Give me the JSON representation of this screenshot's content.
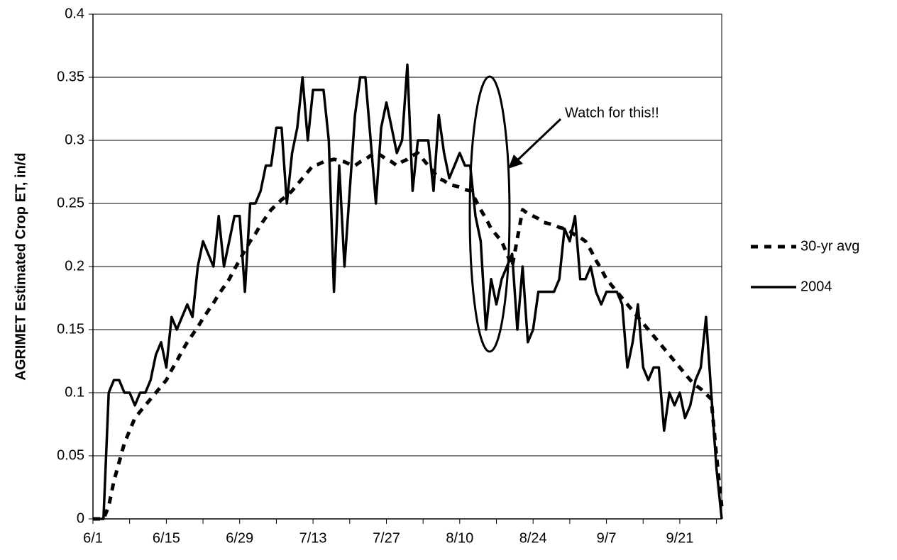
{
  "chart_data": {
    "type": "line",
    "y_label": "AGRIMET Estimated Crop ET, in/d",
    "annotation": "Watch for this!!",
    "categories": [
      "6/1",
      null,
      null,
      null,
      null,
      null,
      null,
      null,
      null,
      null,
      null,
      null,
      null,
      null,
      "6/15",
      null,
      null,
      null,
      null,
      null,
      null,
      null,
      null,
      null,
      null,
      null,
      null,
      null,
      "6/29",
      null,
      null,
      null,
      null,
      null,
      null,
      null,
      null,
      null,
      null,
      null,
      null,
      null,
      "7/13",
      null,
      null,
      null,
      null,
      null,
      null,
      null,
      null,
      null,
      null,
      null,
      null,
      null,
      "7/27",
      null,
      null,
      null,
      null,
      null,
      null,
      null,
      null,
      null,
      null,
      null,
      null,
      null,
      "8/10",
      null,
      null,
      null,
      null,
      null,
      null,
      null,
      null,
      null,
      null,
      null,
      null,
      null,
      "8/24",
      null,
      null,
      null,
      null,
      null,
      null,
      null,
      null,
      null,
      null,
      null,
      null,
      null,
      "9/7",
      null,
      null,
      null,
      null,
      null,
      null,
      null,
      null,
      null,
      null,
      null,
      null,
      null,
      "9/21",
      null,
      null,
      null,
      null,
      null,
      null,
      null,
      null
    ],
    "series": [
      {
        "name": "30-yr avg",
        "color": "#000000",
        "dashed": true,
        "values": [
          0,
          0,
          0,
          0.01,
          0.03,
          0.045,
          0.06,
          0.07,
          0.08,
          0.085,
          0.09,
          0.095,
          0.1,
          0.105,
          0.11,
          0.118,
          0.125,
          0.133,
          0.14,
          0.146,
          0.152,
          0.159,
          0.165,
          0.171,
          0.178,
          0.184,
          0.19,
          0.198,
          0.205,
          0.213,
          0.22,
          0.226,
          0.233,
          0.239,
          0.245,
          0.249,
          0.253,
          0.256,
          0.26,
          0.265,
          0.27,
          0.275,
          0.28,
          0.281,
          0.283,
          0.284,
          0.285,
          0.284,
          0.283,
          0.281,
          0.28,
          0.283,
          0.285,
          0.288,
          0.29,
          0.288,
          0.285,
          0.283,
          0.28,
          0.283,
          0.285,
          0.288,
          0.29,
          0.285,
          0.28,
          0.275,
          0.27,
          0.268,
          0.265,
          0.264,
          0.263,
          0.261,
          0.26,
          0.253,
          0.245,
          0.238,
          0.23,
          0.225,
          0.22,
          0.21,
          0.2,
          0.222,
          0.245,
          0.242,
          0.24,
          0.238,
          0.235,
          0.234,
          0.233,
          0.231,
          0.23,
          0.228,
          0.225,
          0.223,
          0.22,
          0.213,
          0.205,
          0.198,
          0.19,
          0.185,
          0.18,
          0.175,
          0.17,
          0.165,
          0.16,
          0.155,
          0.15,
          0.145,
          0.14,
          0.135,
          0.13,
          0.125,
          0.12,
          0.115,
          0.11,
          0.106,
          0.103,
          0.099,
          0.095,
          0.05,
          0.01
        ]
      },
      {
        "name": "2004",
        "color": "#000000",
        "dashed": false,
        "values": [
          0,
          0,
          0,
          0.1,
          0.11,
          0.11,
          0.1,
          0.1,
          0.09,
          0.1,
          0.1,
          0.11,
          0.13,
          0.14,
          0.12,
          0.16,
          0.15,
          0.16,
          0.17,
          0.16,
          0.2,
          0.22,
          0.21,
          0.2,
          0.24,
          0.2,
          0.22,
          0.24,
          0.24,
          0.18,
          0.25,
          0.25,
          0.26,
          0.28,
          0.28,
          0.31,
          0.31,
          0.25,
          0.29,
          0.31,
          0.35,
          0.3,
          0.34,
          0.34,
          0.34,
          0.3,
          0.18,
          0.28,
          0.2,
          0.26,
          0.32,
          0.35,
          0.35,
          0.3,
          0.25,
          0.31,
          0.33,
          0.31,
          0.29,
          0.3,
          0.36,
          0.26,
          0.3,
          0.3,
          0.3,
          0.26,
          0.32,
          0.29,
          0.27,
          0.28,
          0.29,
          0.28,
          0.28,
          0.24,
          0.22,
          0.15,
          0.19,
          0.17,
          0.19,
          0.2,
          0.21,
          0.15,
          0.2,
          0.14,
          0.15,
          0.18,
          0.18,
          0.18,
          0.18,
          0.19,
          0.23,
          0.22,
          0.24,
          0.19,
          0.19,
          0.2,
          0.18,
          0.17,
          0.18,
          0.18,
          0.18,
          0.17,
          0.12,
          0.14,
          0.17,
          0.12,
          0.11,
          0.12,
          0.12,
          0.07,
          0.1,
          0.09,
          0.1,
          0.08,
          0.09,
          0.11,
          0.12,
          0.16,
          0.1,
          0.04,
          0
        ]
      }
    ],
    "ylim": [
      0,
      0.4
    ],
    "yticks": [
      0,
      0.05,
      0.1,
      0.15,
      0.2,
      0.25,
      0.3,
      0.35,
      0.4
    ],
    "grid": true,
    "legend": "right"
  }
}
